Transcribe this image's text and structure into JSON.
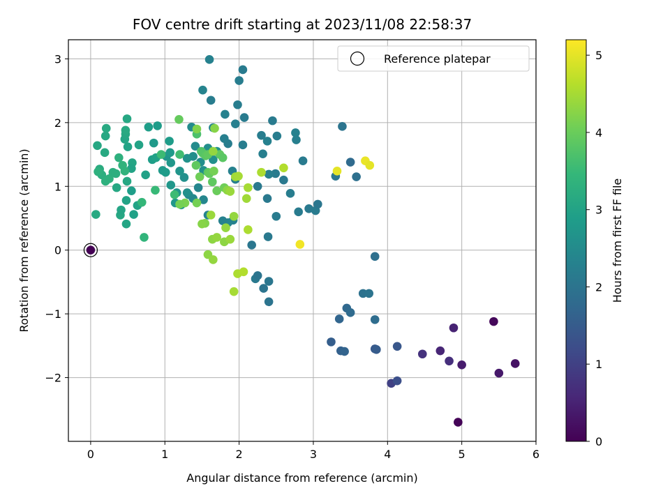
{
  "chart_data": {
    "type": "scatter",
    "title": "FOV centre drift starting at 2023/11/08 22:58:37",
    "xlabel": "Angular distance from reference (arcmin)",
    "ylabel": "Rotation from reference (arcmin)",
    "xlim": [
      -0.3,
      6.0
    ],
    "ylim": [
      -3.0,
      3.3
    ],
    "xticks": [
      0,
      1,
      2,
      3,
      4,
      5,
      6
    ],
    "yticks": [
      -2,
      -1,
      0,
      1,
      2,
      3
    ],
    "grid": true,
    "legend": {
      "placement": "top-right",
      "entries": [
        {
          "label": "Reference platepar",
          "marker": "open-circle"
        }
      ]
    },
    "reference_point": {
      "x": 0.0,
      "y": 0.0
    },
    "colorbar": {
      "label": "Hours from first FF file",
      "range": [
        0,
        5.2
      ],
      "ticks": [
        0,
        1,
        2,
        3,
        4,
        5
      ],
      "colormap": [
        "#440154",
        "#482878",
        "#3e4a89",
        "#31688e",
        "#26828e",
        "#1f9e89",
        "#35b779",
        "#6ece58",
        "#b5de2b",
        "#fde725"
      ]
    },
    "points": [
      {
        "x": 0.0,
        "y": 0.0,
        "c": 0.0
      },
      {
        "x": 4.95,
        "y": -2.7,
        "c": 0.05
      },
      {
        "x": 5.43,
        "y": -1.12,
        "c": 0.1
      },
      {
        "x": 5.72,
        "y": -1.78,
        "c": 0.25
      },
      {
        "x": 5.5,
        "y": -1.93,
        "c": 0.35
      },
      {
        "x": 5.0,
        "y": -1.8,
        "c": 0.4
      },
      {
        "x": 4.89,
        "y": -1.22,
        "c": 0.5
      },
      {
        "x": 4.71,
        "y": -1.58,
        "c": 0.55
      },
      {
        "x": 4.83,
        "y": -1.74,
        "c": 0.7
      },
      {
        "x": 4.47,
        "y": -1.63,
        "c": 0.75
      },
      {
        "x": 4.05,
        "y": -2.09,
        "c": 1.0
      },
      {
        "x": 4.13,
        "y": -2.05,
        "c": 1.25
      },
      {
        "x": 4.13,
        "y": -1.51,
        "c": 1.4
      },
      {
        "x": 3.83,
        "y": -1.55,
        "c": 1.45
      },
      {
        "x": 3.85,
        "y": -1.56,
        "c": 1.5
      },
      {
        "x": 3.24,
        "y": -1.44,
        "c": 1.55
      },
      {
        "x": 3.37,
        "y": -1.58,
        "c": 1.6
      },
      {
        "x": 3.42,
        "y": -1.59,
        "c": 1.65
      },
      {
        "x": 3.35,
        "y": -1.08,
        "c": 1.7
      },
      {
        "x": 3.45,
        "y": -0.91,
        "c": 1.75
      },
      {
        "x": 3.5,
        "y": -0.98,
        "c": 1.8
      },
      {
        "x": 3.83,
        "y": -1.09,
        "c": 1.85
      },
      {
        "x": 3.83,
        "y": -0.1,
        "c": 1.9
      },
      {
        "x": 3.67,
        "y": -0.68,
        "c": 1.95
      },
      {
        "x": 3.75,
        "y": -0.68,
        "c": 2.0
      },
      {
        "x": 3.3,
        "y": 1.16,
        "c": 2.05
      },
      {
        "x": 3.58,
        "y": 1.15,
        "c": 1.9
      },
      {
        "x": 3.5,
        "y": 1.38,
        "c": 1.8
      },
      {
        "x": 3.39,
        "y": 1.94,
        "c": 2.0
      },
      {
        "x": 2.4,
        "y": -0.81,
        "c": 2.0
      },
      {
        "x": 2.4,
        "y": -0.49,
        "c": 2.05
      },
      {
        "x": 2.33,
        "y": -0.6,
        "c": 2.0
      },
      {
        "x": 2.22,
        "y": -0.45,
        "c": 2.1
      },
      {
        "x": 2.25,
        "y": -0.4,
        "c": 2.0
      },
      {
        "x": 2.17,
        "y": 0.08,
        "c": 2.05
      },
      {
        "x": 2.39,
        "y": 0.21,
        "c": 2.1
      },
      {
        "x": 2.5,
        "y": 0.53,
        "c": 2.15
      },
      {
        "x": 2.38,
        "y": 0.81,
        "c": 2.1
      },
      {
        "x": 2.25,
        "y": 1.0,
        "c": 2.1
      },
      {
        "x": 2.49,
        "y": 1.2,
        "c": 2.15
      },
      {
        "x": 2.6,
        "y": 1.1,
        "c": 2.1
      },
      {
        "x": 2.69,
        "y": 0.89,
        "c": 2.2
      },
      {
        "x": 2.8,
        "y": 0.6,
        "c": 2.15
      },
      {
        "x": 2.94,
        "y": 0.65,
        "c": 2.1
      },
      {
        "x": 3.03,
        "y": 0.62,
        "c": 2.15
      },
      {
        "x": 3.06,
        "y": 0.72,
        "c": 2.05
      },
      {
        "x": 2.86,
        "y": 1.4,
        "c": 2.15
      },
      {
        "x": 2.77,
        "y": 1.73,
        "c": 2.25
      },
      {
        "x": 2.76,
        "y": 1.84,
        "c": 2.3
      },
      {
        "x": 2.51,
        "y": 1.79,
        "c": 2.2
      },
      {
        "x": 2.45,
        "y": 2.03,
        "c": 2.15
      },
      {
        "x": 2.32,
        "y": 1.51,
        "c": 2.25
      },
      {
        "x": 2.38,
        "y": 1.71,
        "c": 2.3
      },
      {
        "x": 2.3,
        "y": 1.8,
        "c": 2.2
      },
      {
        "x": 2.4,
        "y": 1.19,
        "c": 2.25
      },
      {
        "x": 2.0,
        "y": 2.66,
        "c": 2.2
      },
      {
        "x": 2.05,
        "y": 2.83,
        "c": 2.15
      },
      {
        "x": 1.98,
        "y": 2.28,
        "c": 2.2
      },
      {
        "x": 2.07,
        "y": 2.08,
        "c": 2.15
      },
      {
        "x": 1.95,
        "y": 1.98,
        "c": 2.25
      },
      {
        "x": 1.85,
        "y": 1.67,
        "c": 2.2
      },
      {
        "x": 2.05,
        "y": 1.65,
        "c": 2.2
      },
      {
        "x": 1.6,
        "y": 2.99,
        "c": 2.3
      },
      {
        "x": 1.51,
        "y": 2.51,
        "c": 2.35
      },
      {
        "x": 1.62,
        "y": 2.35,
        "c": 2.2
      },
      {
        "x": 1.81,
        "y": 2.13,
        "c": 2.3
      },
      {
        "x": 1.65,
        "y": 1.92,
        "c": 2.35
      },
      {
        "x": 1.8,
        "y": 1.75,
        "c": 2.25
      },
      {
        "x": 1.91,
        "y": 1.24,
        "c": 2.3
      },
      {
        "x": 1.95,
        "y": 1.11,
        "c": 2.25
      },
      {
        "x": 1.92,
        "y": 0.47,
        "c": 2.3
      },
      {
        "x": 1.85,
        "y": 0.43,
        "c": 2.35
      },
      {
        "x": 1.78,
        "y": 0.46,
        "c": 2.3
      },
      {
        "x": 1.58,
        "y": 0.55,
        "c": 2.35
      },
      {
        "x": 1.52,
        "y": 0.79,
        "c": 2.4
      },
      {
        "x": 1.45,
        "y": 0.98,
        "c": 2.4
      },
      {
        "x": 1.38,
        "y": 0.81,
        "c": 2.45
      },
      {
        "x": 1.32,
        "y": 0.87,
        "c": 2.45
      },
      {
        "x": 1.36,
        "y": 1.93,
        "c": 2.5
      },
      {
        "x": 1.41,
        "y": 1.63,
        "c": 2.5
      },
      {
        "x": 1.38,
        "y": 1.47,
        "c": 2.55
      },
      {
        "x": 1.48,
        "y": 1.38,
        "c": 2.55
      },
      {
        "x": 1.52,
        "y": 1.25,
        "c": 2.6
      },
      {
        "x": 1.58,
        "y": 1.6,
        "c": 2.55
      },
      {
        "x": 1.65,
        "y": 1.42,
        "c": 2.6
      },
      {
        "x": 1.7,
        "y": 1.55,
        "c": 2.65
      },
      {
        "x": 1.3,
        "y": 1.44,
        "c": 2.65
      },
      {
        "x": 1.26,
        "y": 1.14,
        "c": 2.6
      },
      {
        "x": 1.2,
        "y": 1.24,
        "c": 2.7
      },
      {
        "x": 1.3,
        "y": 0.9,
        "c": 2.6
      },
      {
        "x": 1.16,
        "y": 0.9,
        "c": 2.7
      },
      {
        "x": 1.14,
        "y": 0.74,
        "c": 2.75
      },
      {
        "x": 1.22,
        "y": 0.71,
        "c": 2.7
      },
      {
        "x": 1.08,
        "y": 1.02,
        "c": 2.75
      },
      {
        "x": 1.02,
        "y": 1.47,
        "c": 2.7
      },
      {
        "x": 0.97,
        "y": 1.25,
        "c": 2.8
      },
      {
        "x": 1.01,
        "y": 1.22,
        "c": 2.85
      },
      {
        "x": 1.08,
        "y": 1.37,
        "c": 2.75
      },
      {
        "x": 1.07,
        "y": 1.53,
        "c": 2.8
      },
      {
        "x": 1.06,
        "y": 1.71,
        "c": 2.85
      },
      {
        "x": 0.85,
        "y": 1.68,
        "c": 2.8
      },
      {
        "x": 0.9,
        "y": 1.95,
        "c": 2.85
      },
      {
        "x": 0.78,
        "y": 1.93,
        "c": 2.9
      },
      {
        "x": 0.83,
        "y": 1.42,
        "c": 2.9
      },
      {
        "x": 0.88,
        "y": 1.45,
        "c": 2.95
      },
      {
        "x": 0.74,
        "y": 1.18,
        "c": 2.95
      },
      {
        "x": 0.63,
        "y": 0.7,
        "c": 3.0
      },
      {
        "x": 0.58,
        "y": 0.56,
        "c": 2.95
      },
      {
        "x": 0.55,
        "y": 0.93,
        "c": 2.9
      },
      {
        "x": 0.65,
        "y": 1.65,
        "c": 3.0
      },
      {
        "x": 0.56,
        "y": 1.37,
        "c": 3.05
      },
      {
        "x": 0.55,
        "y": 1.28,
        "c": 3.0
      },
      {
        "x": 0.49,
        "y": 1.08,
        "c": 3.1
      },
      {
        "x": 0.48,
        "y": 0.41,
        "c": 3.05
      },
      {
        "x": 0.4,
        "y": 0.55,
        "c": 3.1
      },
      {
        "x": 0.41,
        "y": 0.63,
        "c": 3.05
      },
      {
        "x": 0.48,
        "y": 0.78,
        "c": 3.0
      },
      {
        "x": 0.35,
        "y": 0.98,
        "c": 3.1
      },
      {
        "x": 0.5,
        "y": 1.62,
        "c": 3.0
      },
      {
        "x": 0.46,
        "y": 1.74,
        "c": 3.05
      },
      {
        "x": 0.47,
        "y": 1.82,
        "c": 3.1
      },
      {
        "x": 0.47,
        "y": 1.88,
        "c": 3.15
      },
      {
        "x": 0.49,
        "y": 2.06,
        "c": 3.1
      },
      {
        "x": 0.21,
        "y": 1.91,
        "c": 3.15
      },
      {
        "x": 0.2,
        "y": 1.79,
        "c": 3.1
      },
      {
        "x": 0.19,
        "y": 1.53,
        "c": 3.15
      },
      {
        "x": 0.09,
        "y": 1.64,
        "c": 3.1
      },
      {
        "x": 0.07,
        "y": 0.56,
        "c": 3.15
      },
      {
        "x": 0.12,
        "y": 1.27,
        "c": 3.2
      },
      {
        "x": 0.15,
        "y": 1.18,
        "c": 3.25
      },
      {
        "x": 0.2,
        "y": 1.08,
        "c": 3.3
      },
      {
        "x": 0.25,
        "y": 1.12,
        "c": 3.3
      },
      {
        "x": 0.3,
        "y": 1.22,
        "c": 3.25
      },
      {
        "x": 0.43,
        "y": 1.33,
        "c": 3.35
      },
      {
        "x": 0.38,
        "y": 1.45,
        "c": 3.3
      },
      {
        "x": 0.34,
        "y": 1.2,
        "c": 3.25
      },
      {
        "x": 0.46,
        "y": 1.24,
        "c": 3.35
      },
      {
        "x": 0.1,
        "y": 1.23,
        "c": 3.3
      },
      {
        "x": 0.72,
        "y": 0.2,
        "c": 3.4
      },
      {
        "x": 0.69,
        "y": 0.75,
        "c": 3.45
      },
      {
        "x": 0.87,
        "y": 0.94,
        "c": 3.5
      },
      {
        "x": 0.95,
        "y": 1.5,
        "c": 3.55
      },
      {
        "x": 1.2,
        "y": 1.5,
        "c": 3.6
      },
      {
        "x": 1.13,
        "y": 0.87,
        "c": 3.55
      },
      {
        "x": 1.43,
        "y": 1.82,
        "c": 3.7
      },
      {
        "x": 1.49,
        "y": 1.55,
        "c": 3.75
      },
      {
        "x": 1.51,
        "y": 1.52,
        "c": 3.8
      },
      {
        "x": 1.55,
        "y": 1.48,
        "c": 3.85
      },
      {
        "x": 1.58,
        "y": 1.5,
        "c": 3.9
      },
      {
        "x": 1.19,
        "y": 2.05,
        "c": 3.95
      },
      {
        "x": 1.42,
        "y": 1.33,
        "c": 3.9
      },
      {
        "x": 1.58,
        "y": 1.22,
        "c": 3.85
      },
      {
        "x": 1.64,
        "y": 1.07,
        "c": 3.9
      },
      {
        "x": 1.6,
        "y": 1.2,
        "c": 3.95
      },
      {
        "x": 1.7,
        "y": 0.93,
        "c": 4.0
      },
      {
        "x": 1.74,
        "y": 1.5,
        "c": 3.9
      },
      {
        "x": 1.78,
        "y": 1.45,
        "c": 3.85
      },
      {
        "x": 1.8,
        "y": 0.98,
        "c": 4.05
      },
      {
        "x": 1.66,
        "y": 1.24,
        "c": 4.1
      },
      {
        "x": 1.47,
        "y": 1.15,
        "c": 4.05
      },
      {
        "x": 1.43,
        "y": 0.74,
        "c": 4.1
      },
      {
        "x": 1.27,
        "y": 0.74,
        "c": 4.15
      },
      {
        "x": 1.2,
        "y": 0.72,
        "c": 4.1
      },
      {
        "x": 1.43,
        "y": 1.9,
        "c": 4.2
      },
      {
        "x": 1.67,
        "y": 1.91,
        "c": 4.25
      },
      {
        "x": 1.54,
        "y": 0.42,
        "c": 4.2
      },
      {
        "x": 1.5,
        "y": 0.41,
        "c": 4.25
      },
      {
        "x": 1.58,
        "y": -0.07,
        "c": 4.3
      },
      {
        "x": 1.65,
        "y": -0.15,
        "c": 4.35
      },
      {
        "x": 1.64,
        "y": 0.17,
        "c": 4.3
      },
      {
        "x": 1.7,
        "y": 0.2,
        "c": 4.35
      },
      {
        "x": 1.8,
        "y": 0.13,
        "c": 4.3
      },
      {
        "x": 1.82,
        "y": 0.35,
        "c": 4.35
      },
      {
        "x": 1.88,
        "y": 0.17,
        "c": 4.4
      },
      {
        "x": 1.93,
        "y": 0.53,
        "c": 4.35
      },
      {
        "x": 1.84,
        "y": 0.94,
        "c": 4.3
      },
      {
        "x": 1.88,
        "y": 0.92,
        "c": 4.4
      },
      {
        "x": 1.65,
        "y": 1.55,
        "c": 4.35
      },
      {
        "x": 1.62,
        "y": 0.55,
        "c": 4.4
      },
      {
        "x": 1.95,
        "y": 1.15,
        "c": 4.45
      },
      {
        "x": 1.99,
        "y": 1.16,
        "c": 4.5
      },
      {
        "x": 2.1,
        "y": 0.81,
        "c": 4.45
      },
      {
        "x": 2.12,
        "y": 0.98,
        "c": 4.5
      },
      {
        "x": 2.12,
        "y": 0.32,
        "c": 4.55
      },
      {
        "x": 1.93,
        "y": -0.65,
        "c": 4.5
      },
      {
        "x": 1.98,
        "y": -0.37,
        "c": 4.55
      },
      {
        "x": 2.06,
        "y": -0.34,
        "c": 4.6
      },
      {
        "x": 2.3,
        "y": 1.22,
        "c": 4.55
      },
      {
        "x": 2.6,
        "y": 1.29,
        "c": 4.6
      },
      {
        "x": 2.82,
        "y": 0.09,
        "c": 5.1
      },
      {
        "x": 3.32,
        "y": 1.24,
        "c": 5.0
      },
      {
        "x": 3.7,
        "y": 1.4,
        "c": 5.05
      },
      {
        "x": 3.76,
        "y": 1.33,
        "c": 5.0
      }
    ]
  }
}
